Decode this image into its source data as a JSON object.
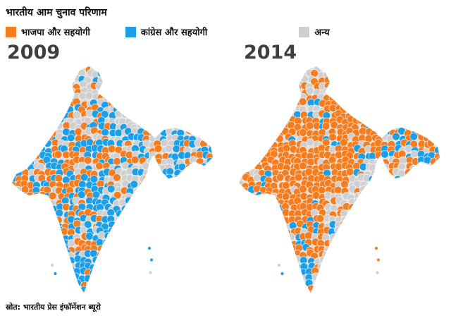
{
  "title": "भारतीय आम चुनाव परिणाम",
  "legend": {
    "items": [
      {
        "label": "भाजपा और सहयोगी",
        "color_key": "bjp"
      },
      {
        "label": "कांग्रेस और सहयोगी",
        "color_key": "inc"
      },
      {
        "label": "अन्य",
        "color_key": "other"
      }
    ]
  },
  "maps": [
    {
      "year": "2009"
    },
    {
      "year": "2014"
    }
  ],
  "source": "स्रोत: भारतीय प्रेस इंफॉर्मेशन ब्यूरो",
  "colors": {
    "bjp": "#F57C1F",
    "inc": "#1D9FE8",
    "other": "#CFCFCF"
  }
}
